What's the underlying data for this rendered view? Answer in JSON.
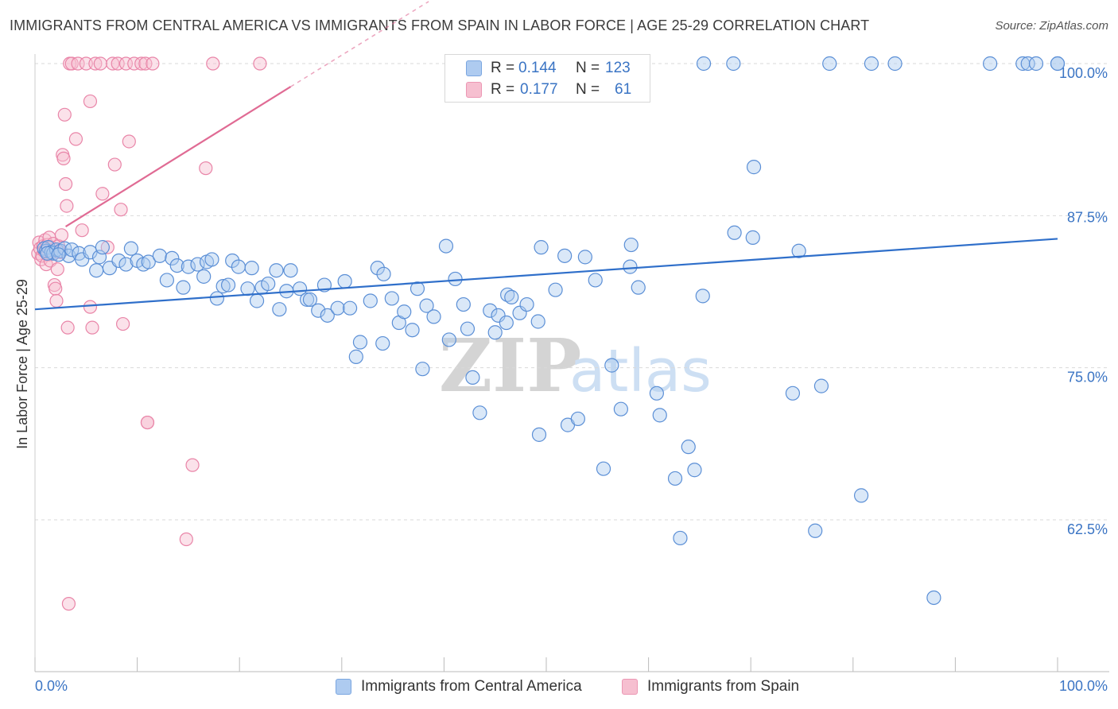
{
  "title": "IMMIGRANTS FROM CENTRAL AMERICA VS IMMIGRANTS FROM SPAIN IN LABOR FORCE | AGE 25-29 CORRELATION CHART",
  "source": "Source: ZipAtlas.com",
  "watermark": {
    "zip": "ZIP",
    "atlas": "atlas"
  },
  "colors": {
    "blue_fill": "#aecbf0",
    "blue_stroke": "#5b8fd6",
    "blue_line": "#2f6fca",
    "pink_fill": "#f6bfd0",
    "pink_stroke": "#e985a8",
    "pink_line": "#e06b94",
    "axis_label": "#3a74c4",
    "grid": "#d9d9d9"
  },
  "stats_legend": {
    "r_label": "R =",
    "n_label": "N =",
    "rows": [
      {
        "r": "0.144",
        "n": "123",
        "color": "blue"
      },
      {
        "r": "0.177",
        "n": "61",
        "color": "pink"
      }
    ]
  },
  "chart_data": {
    "type": "scatter",
    "title": "IMMIGRANTS FROM CENTRAL AMERICA VS IMMIGRANTS FROM SPAIN IN LABOR FORCE | AGE 25-29 CORRELATION CHART",
    "xlabel": "",
    "ylabel": "In Labor Force | Age 25-29",
    "xlim": [
      0,
      100
    ],
    "ylim": [
      50,
      100
    ],
    "x_tick_labels": [
      "0.0%",
      "100.0%"
    ],
    "y_ticks": [
      62.5,
      75.0,
      87.5,
      100.0
    ],
    "y_tick_labels": [
      "62.5%",
      "75.0%",
      "87.5%",
      "100.0%"
    ],
    "grid": "horizontal dashed",
    "legend_position": "bottom-center",
    "series": [
      {
        "name": "Immigrants from Central America",
        "color": "blue",
        "R": 0.144,
        "N": 123,
        "trend": {
          "x": [
            0,
            100
          ],
          "y": [
            79.8,
            85.6
          ]
        },
        "points": [
          [
            0.9,
            84.8
          ],
          [
            1.1,
            84.6
          ],
          [
            1.3,
            84.9
          ],
          [
            1.6,
            84.5
          ],
          [
            1.8,
            84.4
          ],
          [
            2.1,
            84.7
          ],
          [
            2.5,
            84.6
          ],
          [
            2.9,
            84.8
          ],
          [
            3.3,
            84.2
          ],
          [
            3.6,
            84.7
          ],
          [
            4.3,
            84.4
          ],
          [
            4.6,
            83.9
          ],
          [
            5.4,
            84.5
          ],
          [
            6.3,
            84.1
          ],
          [
            6.6,
            84.9
          ],
          [
            7.3,
            83.2
          ],
          [
            8.2,
            83.8
          ],
          [
            8.9,
            83.5
          ],
          [
            9.4,
            84.8
          ],
          [
            10.0,
            83.8
          ],
          [
            10.6,
            83.5
          ],
          [
            11.1,
            83.7
          ],
          [
            12.2,
            84.2
          ],
          [
            12.9,
            82.2
          ],
          [
            13.4,
            84.0
          ],
          [
            13.9,
            83.4
          ],
          [
            14.5,
            81.6
          ],
          [
            15.0,
            83.3
          ],
          [
            15.9,
            83.5
          ],
          [
            16.5,
            82.5
          ],
          [
            16.8,
            83.7
          ],
          [
            17.3,
            83.9
          ],
          [
            17.8,
            80.7
          ],
          [
            18.4,
            81.7
          ],
          [
            18.9,
            81.8
          ],
          [
            19.3,
            83.8
          ],
          [
            19.9,
            83.3
          ],
          [
            20.8,
            81.5
          ],
          [
            21.2,
            83.2
          ],
          [
            21.7,
            80.5
          ],
          [
            22.2,
            81.6
          ],
          [
            22.8,
            81.9
          ],
          [
            23.6,
            83.0
          ],
          [
            23.9,
            79.8
          ],
          [
            24.6,
            81.3
          ],
          [
            25.0,
            83.0
          ],
          [
            25.9,
            81.5
          ],
          [
            26.6,
            80.6
          ],
          [
            26.9,
            80.6
          ],
          [
            27.7,
            79.7
          ],
          [
            28.3,
            81.8
          ],
          [
            28.6,
            79.3
          ],
          [
            29.6,
            79.9
          ],
          [
            30.3,
            82.1
          ],
          [
            30.8,
            79.9
          ],
          [
            31.8,
            77.1
          ],
          [
            31.4,
            75.9
          ],
          [
            32.8,
            80.5
          ],
          [
            33.5,
            83.2
          ],
          [
            34.0,
            77.0
          ],
          [
            34.1,
            82.7
          ],
          [
            34.9,
            80.7
          ],
          [
            35.6,
            78.7
          ],
          [
            36.1,
            79.6
          ],
          [
            36.9,
            78.1
          ],
          [
            37.4,
            81.5
          ],
          [
            37.9,
            74.9
          ],
          [
            38.3,
            80.1
          ],
          [
            39.0,
            79.2
          ],
          [
            40.2,
            85.0
          ],
          [
            40.5,
            77.3
          ],
          [
            41.1,
            82.3
          ],
          [
            41.9,
            80.2
          ],
          [
            42.3,
            78.2
          ],
          [
            42.8,
            74.2
          ],
          [
            43.5,
            71.3
          ],
          [
            44.5,
            79.7
          ],
          [
            45.0,
            77.9
          ],
          [
            45.3,
            79.3
          ],
          [
            46.1,
            78.7
          ],
          [
            46.2,
            81.0
          ],
          [
            46.6,
            80.8
          ],
          [
            47.4,
            79.5
          ],
          [
            48.1,
            80.2
          ],
          [
            49.3,
            69.5
          ],
          [
            49.2,
            78.8
          ],
          [
            49.5,
            84.9
          ],
          [
            50.9,
            81.4
          ],
          [
            52.1,
            70.3
          ],
          [
            51.8,
            84.2
          ],
          [
            53.1,
            70.8
          ],
          [
            53.8,
            84.1
          ],
          [
            54.8,
            82.2
          ],
          [
            55.6,
            66.7
          ],
          [
            56.4,
            75.2
          ],
          [
            57.3,
            71.6
          ],
          [
            58.2,
            83.3
          ],
          [
            58.3,
            85.1
          ],
          [
            59.0,
            81.6
          ],
          [
            60.8,
            72.9
          ],
          [
            61.1,
            71.1
          ],
          [
            62.6,
            65.9
          ],
          [
            63.1,
            61.0
          ],
          [
            63.9,
            68.5
          ],
          [
            64.5,
            66.6
          ],
          [
            65.3,
            80.9
          ],
          [
            65.4,
            100.0
          ],
          [
            68.3,
            100.0
          ],
          [
            68.4,
            86.1
          ],
          [
            70.2,
            85.7
          ],
          [
            70.3,
            91.5
          ],
          [
            74.1,
            72.9
          ],
          [
            74.7,
            84.6
          ],
          [
            76.3,
            61.6
          ],
          [
            76.9,
            73.5
          ],
          [
            77.7,
            100.0
          ],
          [
            80.8,
            64.5
          ],
          [
            81.8,
            100.0
          ],
          [
            84.1,
            100.0
          ],
          [
            87.9,
            56.1
          ],
          [
            93.4,
            100.0
          ],
          [
            96.6,
            100.0
          ],
          [
            97.1,
            100.0
          ],
          [
            97.9,
            100.0
          ],
          [
            100.0,
            100.0
          ],
          [
            100.0,
            100.0
          ],
          [
            1.2,
            84.4
          ],
          [
            2.3,
            84.3
          ],
          [
            6.0,
            83.0
          ]
        ]
      },
      {
        "name": "Immigrants from Spain",
        "color": "pink",
        "R": 0.177,
        "N": 61,
        "trend": {
          "x": [
            3.0,
            25.0
          ],
          "y": [
            86.6,
            98.1
          ]
        },
        "trend_dashed": {
          "x": [
            25.0,
            38.5
          ],
          "y": [
            98.1,
            105.1
          ]
        },
        "points": [
          [
            0.3,
            84.4
          ],
          [
            0.4,
            85.3
          ],
          [
            0.5,
            84.8
          ],
          [
            0.6,
            83.9
          ],
          [
            0.7,
            84.2
          ],
          [
            0.8,
            85.0
          ],
          [
            0.9,
            84.6
          ],
          [
            1.0,
            85.5
          ],
          [
            1.1,
            83.5
          ],
          [
            1.2,
            85.1
          ],
          [
            1.3,
            84.3
          ],
          [
            1.4,
            85.7
          ],
          [
            1.5,
            83.8
          ],
          [
            1.6,
            84.9
          ],
          [
            1.7,
            84.6
          ],
          [
            1.8,
            85.2
          ],
          [
            1.9,
            81.8
          ],
          [
            2.0,
            81.5
          ],
          [
            2.1,
            80.5
          ],
          [
            2.2,
            83.1
          ],
          [
            2.3,
            85.0
          ],
          [
            2.5,
            84.5
          ],
          [
            2.6,
            85.9
          ],
          [
            2.7,
            92.5
          ],
          [
            2.8,
            92.2
          ],
          [
            2.9,
            95.8
          ],
          [
            3.0,
            90.1
          ],
          [
            3.1,
            88.3
          ],
          [
            3.2,
            78.3
          ],
          [
            3.3,
            55.6
          ],
          [
            3.4,
            100.0
          ],
          [
            3.6,
            100.0
          ],
          [
            4.0,
            93.8
          ],
          [
            4.2,
            100.0
          ],
          [
            4.6,
            86.3
          ],
          [
            5.0,
            100.0
          ],
          [
            5.4,
            96.9
          ],
          [
            5.4,
            80.0
          ],
          [
            5.6,
            78.3
          ],
          [
            5.9,
            100.0
          ],
          [
            6.4,
            100.0
          ],
          [
            6.6,
            89.3
          ],
          [
            7.1,
            84.9
          ],
          [
            7.6,
            100.0
          ],
          [
            7.8,
            91.7
          ],
          [
            8.1,
            100.0
          ],
          [
            8.4,
            88.0
          ],
          [
            8.6,
            78.6
          ],
          [
            8.9,
            100.0
          ],
          [
            9.2,
            93.6
          ],
          [
            9.7,
            100.0
          ],
          [
            10.4,
            100.0
          ],
          [
            10.8,
            100.0
          ],
          [
            11.0,
            70.5
          ],
          [
            11.0,
            70.5
          ],
          [
            11.5,
            100.0
          ],
          [
            14.8,
            60.9
          ],
          [
            15.4,
            67.0
          ],
          [
            16.7,
            91.4
          ],
          [
            17.4,
            100.0
          ],
          [
            22.0,
            100.0
          ]
        ]
      }
    ]
  }
}
